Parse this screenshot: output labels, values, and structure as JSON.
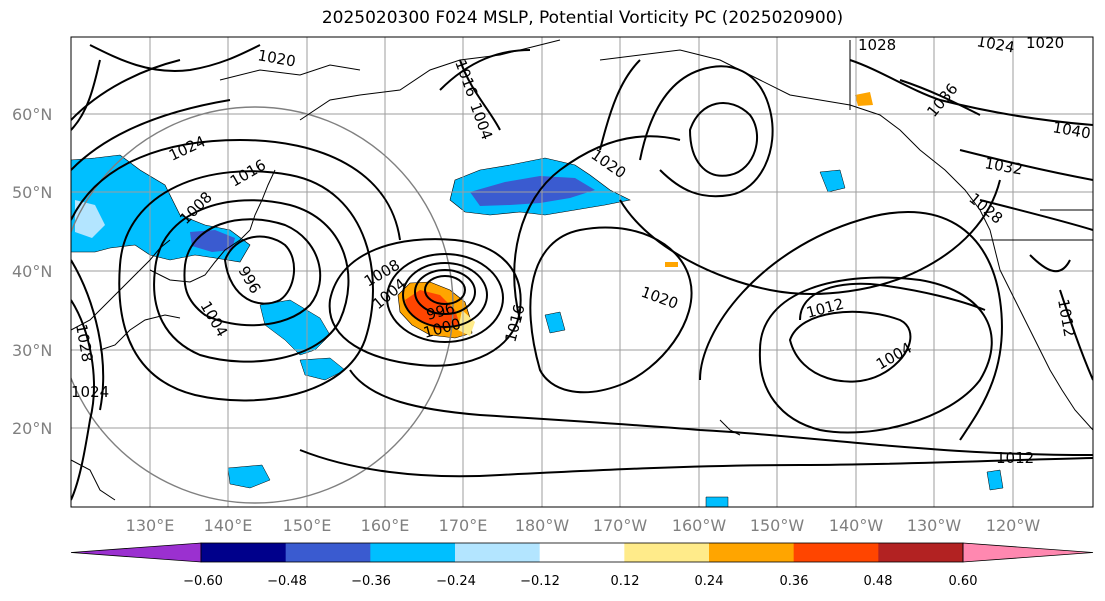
{
  "title": "2025020300 F024 MSLP, Potential Vorticity PC (2025020900)",
  "lat_labels": [
    "60°N",
    "50°N",
    "40°N",
    "30°N",
    "20°N"
  ],
  "lon_labels": [
    "130°E",
    "140°E",
    "150°E",
    "160°E",
    "170°E",
    "180°W",
    "170°W",
    "160°W",
    "150°W",
    "140°W",
    "130°W",
    "120°W"
  ],
  "colorbar": {
    "ticks": [
      "−0.60",
      "−0.48",
      "−0.36",
      "−0.24",
      "−0.12",
      "0.12",
      "0.24",
      "0.36",
      "0.48",
      "0.60"
    ],
    "colors": [
      "#9b30d0",
      "#00008b",
      "#3a5bd0",
      "#00bfff",
      "#b3e5ff",
      "#ffffff",
      "#ffeb8a",
      "#ffa500",
      "#ff4500",
      "#b22222",
      "#ff88b0"
    ]
  },
  "isobar_labels": [
    "1012",
    "1020",
    "1016",
    "1024",
    "1004",
    "1000",
    "996",
    "1008",
    "1016",
    "1020",
    "1020",
    "1012",
    "1004",
    "1012",
    "1036",
    "1032",
    "1028",
    "1040",
    "1016",
    "1028",
    "1024",
    "1020",
    "1004",
    "996",
    "1004",
    "1008",
    "1028",
    "1024"
  ]
}
